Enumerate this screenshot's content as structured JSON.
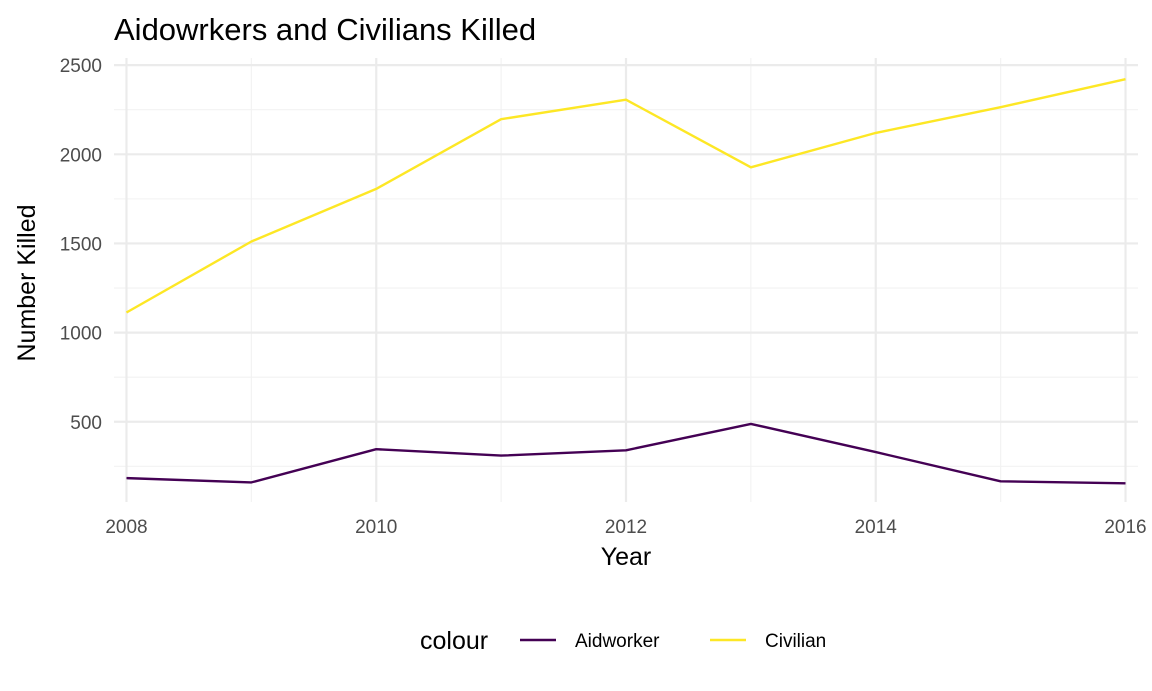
{
  "chart_data": {
    "type": "line",
    "title": "Aidowrkers and Civilians Killed",
    "xlabel": "Year",
    "ylabel": "Number Killed",
    "x": [
      2008,
      2009,
      2010,
      2011,
      2012,
      2013,
      2014,
      2015,
      2016
    ],
    "xlim": [
      2007.9,
      2016.1
    ],
    "ylim": [
      50,
      2540
    ],
    "x_ticks": [
      2008,
      2010,
      2012,
      2014,
      2016
    ],
    "y_ticks": [
      500,
      1000,
      1500,
      2000,
      2500
    ],
    "x_tick_labels": [
      "2008",
      "2010",
      "2012",
      "2014",
      "2016"
    ],
    "y_tick_labels": [
      "500",
      "1000",
      "1500",
      "2000",
      "2500"
    ],
    "grid": true,
    "legend": {
      "title": "colour",
      "position": "bottom"
    },
    "series": [
      {
        "name": "Aidworker",
        "color": "#440154",
        "values": [
          184,
          160,
          346,
          310,
          340,
          488,
          330,
          166,
          155
        ]
      },
      {
        "name": "Civilian",
        "color": "#FDE725",
        "values": [
          1113,
          1511,
          1806,
          2197,
          2306,
          1927,
          2120,
          2264,
          2421
        ]
      }
    ]
  }
}
